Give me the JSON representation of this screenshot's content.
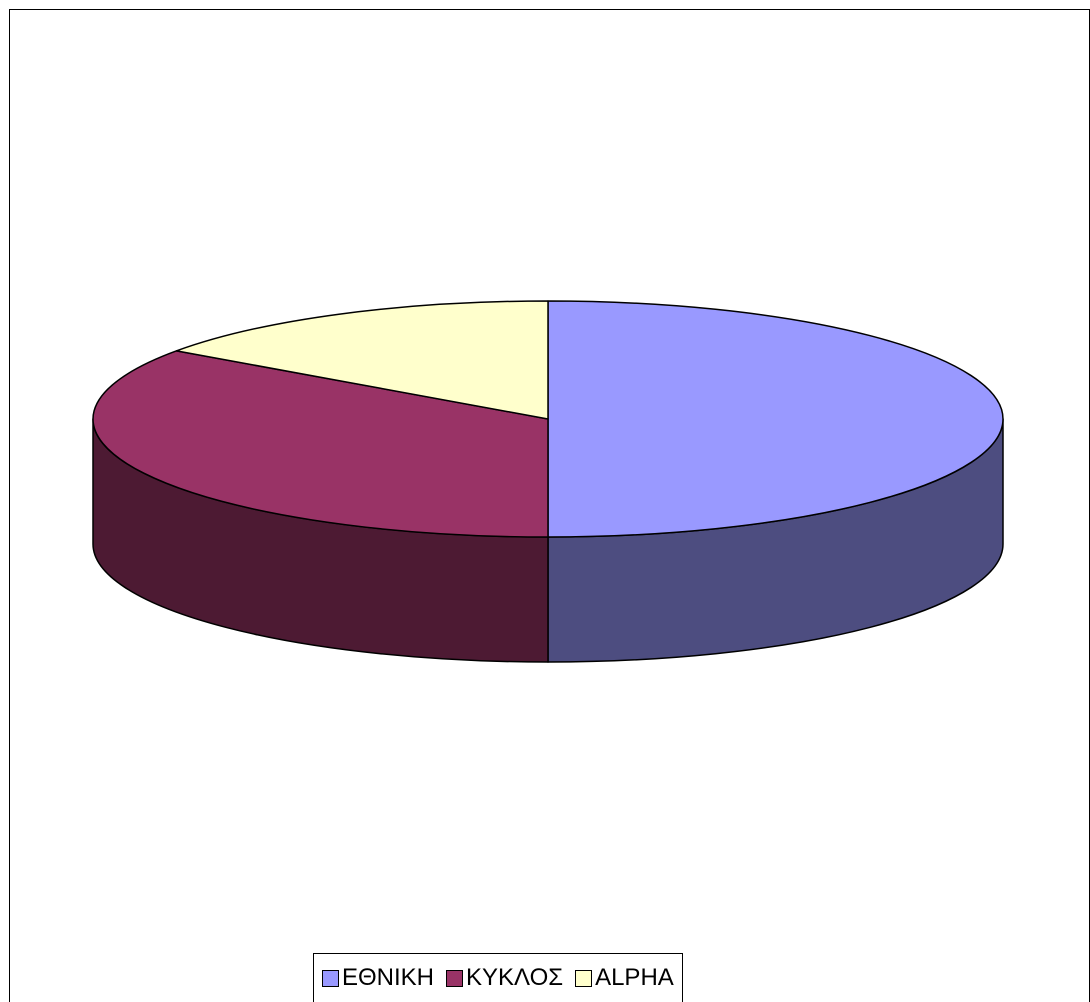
{
  "chart_data": {
    "type": "pie",
    "style": "3d",
    "title": "",
    "slices": [
      {
        "label": "ΕΘΝΙΚΗ",
        "value": 50.0,
        "color": "#9999FF",
        "side_color": "#4D4D80"
      },
      {
        "label": "ΚΥΚΛΟΣ",
        "value": 34.8,
        "color": "#993366",
        "side_color": "#4D1A33"
      },
      {
        "label": "ALPHA",
        "value": 15.2,
        "color": "#FFFFCC",
        "side_color": "#808066"
      }
    ],
    "legend_position": "bottom"
  }
}
